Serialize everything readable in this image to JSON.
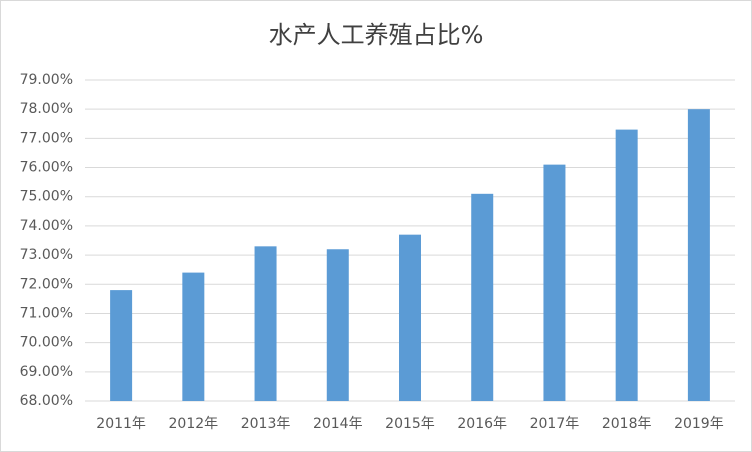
{
  "chart_data": {
    "type": "bar",
    "title": "水产人工养殖占比%",
    "categories": [
      "2011年",
      "2012年",
      "2013年",
      "2014年",
      "2015年",
      "2016年",
      "2017年",
      "2018年",
      "2019年"
    ],
    "values": [
      71.8,
      72.4,
      73.3,
      73.2,
      73.7,
      75.1,
      76.1,
      77.3,
      78.0
    ],
    "color": "#5b9bd5",
    "ylim": [
      68,
      79
    ],
    "yticks": [
      {
        "value": 68,
        "label": "68.00%"
      },
      {
        "value": 69,
        "label": "69.00%"
      },
      {
        "value": 70,
        "label": "70.00%"
      },
      {
        "value": 71,
        "label": "71.00%"
      },
      {
        "value": 72,
        "label": "72.00%"
      },
      {
        "value": 73,
        "label": "73.00%"
      },
      {
        "value": 74,
        "label": "74.00%"
      },
      {
        "value": 75,
        "label": "75.00%"
      },
      {
        "value": 76,
        "label": "76.00%"
      },
      {
        "value": 77,
        "label": "77.00%"
      },
      {
        "value": 78,
        "label": "78.00%"
      },
      {
        "value": 79,
        "label": "79.00%"
      }
    ],
    "grid": true
  }
}
